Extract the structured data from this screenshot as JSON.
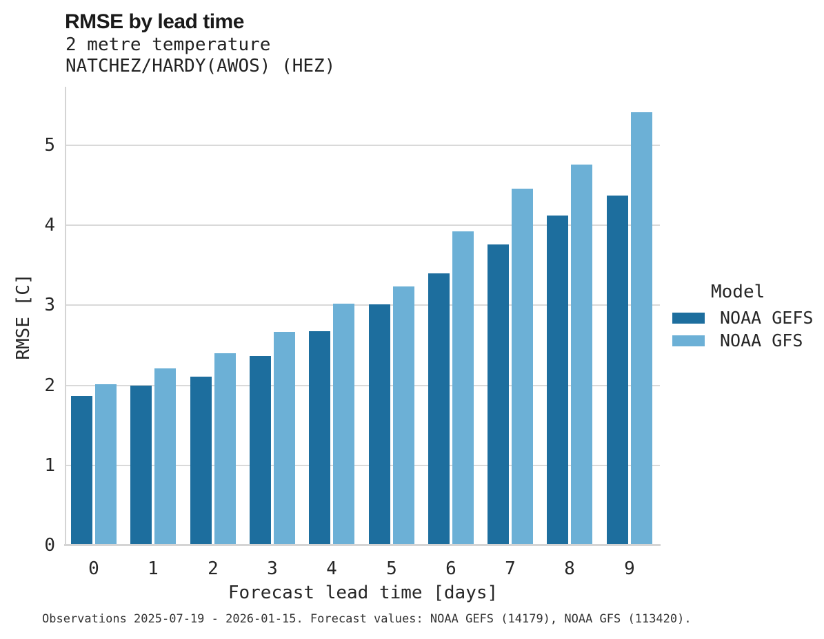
{
  "header": {
    "title": "RMSE by lead time",
    "subtitle_line1": "2 metre temperature",
    "subtitle_line2": "NATCHEZ/HARDY(AWOS) (HEZ)"
  },
  "chart_data": {
    "type": "bar",
    "title": "RMSE by lead time",
    "subtitle": "2 metre temperature NATCHEZ/HARDY(AWOS) (HEZ)",
    "xlabel": "Forecast lead time [days]",
    "ylabel": "RMSE [C]",
    "categories": [
      "0",
      "1",
      "2",
      "3",
      "4",
      "5",
      "6",
      "7",
      "8",
      "9"
    ],
    "series": [
      {
        "name": "NOAA GEFS",
        "color": "#1d6e9e",
        "values": [
          1.87,
          2.0,
          2.11,
          2.37,
          2.68,
          3.01,
          3.4,
          3.76,
          4.12,
          4.37
        ]
      },
      {
        "name": "NOAA GFS",
        "color": "#6cb0d6",
        "values": [
          2.01,
          2.21,
          2.4,
          2.67,
          3.02,
          3.24,
          3.92,
          4.46,
          4.76,
          5.41
        ]
      }
    ],
    "ylim": [
      0,
      5.72
    ],
    "yticks": [
      0,
      1,
      2,
      3,
      4,
      5
    ],
    "grid": true,
    "gridline_color": "#d9d9d9",
    "legend_title": "Model",
    "legend_position": "right of plot, middle"
  },
  "legend": {
    "title": "Model",
    "items": [
      {
        "label": "NOAA GEFS",
        "color": "#1d6e9e"
      },
      {
        "label": "NOAA GFS",
        "color": "#6cb0d6"
      }
    ]
  },
  "footer": {
    "note": "Observations 2025-07-19 - 2026-01-15. Forecast values: NOAA GEFS (14179), NOAA GFS (113420)."
  },
  "colors": {
    "background": "#ffffff",
    "axis": "#d4d4d4",
    "grid": "#d9d9d9",
    "text": "#262626",
    "series_dark": "#1d6e9e",
    "series_light": "#6cb0d6"
  }
}
